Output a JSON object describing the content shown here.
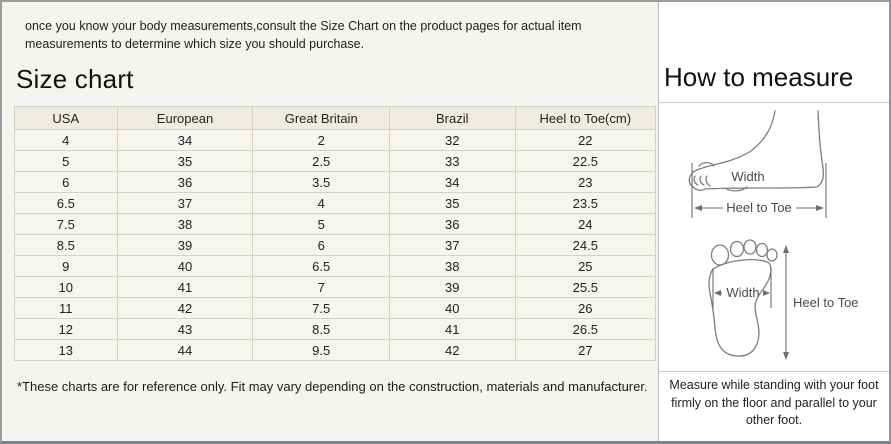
{
  "intro": {
    "text": "once you know your body measurements,consult the Size Chart on the product pages for actual item measurements to determine which size you should purchase."
  },
  "size_chart": {
    "title": "Size chart",
    "columns": [
      "USA",
      "European",
      "Great Britain",
      "Brazil",
      "Heel to Toe(cm)"
    ],
    "rows": [
      [
        "4",
        "34",
        "2",
        "32",
        "22"
      ],
      [
        "5",
        "35",
        "2.5",
        "33",
        "22.5"
      ],
      [
        "6",
        "36",
        "3.5",
        "34",
        "23"
      ],
      [
        "6.5",
        "37",
        "4",
        "35",
        "23.5"
      ],
      [
        "7.5",
        "38",
        "5",
        "36",
        "24"
      ],
      [
        "8.5",
        "39",
        "6",
        "37",
        "24.5"
      ],
      [
        "9",
        "40",
        "6.5",
        "38",
        "25"
      ],
      [
        "10",
        "41",
        "7",
        "39",
        "25.5"
      ],
      [
        "11",
        "42",
        "7.5",
        "40",
        "26"
      ],
      [
        "12",
        "43",
        "8.5",
        "41",
        "26.5"
      ],
      [
        "13",
        "44",
        "9.5",
        "42",
        "27"
      ]
    ],
    "footnote": "*These charts are for reference only. Fit may vary depending on the construction, materials and manufacturer."
  },
  "how_to_measure": {
    "title": "How to measure",
    "side_view": {
      "width_label": "Width",
      "heel_to_toe_label": "Heel to Toe"
    },
    "footprint": {
      "width_label": "Width",
      "heel_to_toe_label": "Heel to Toe"
    },
    "note": "Measure while standing with your foot firmly on the floor and parallel to your other foot."
  },
  "colors": {
    "table_border": "#d6d3bc",
    "header_bg": "#eeece1",
    "cell_bg": "#f6f5f0"
  }
}
